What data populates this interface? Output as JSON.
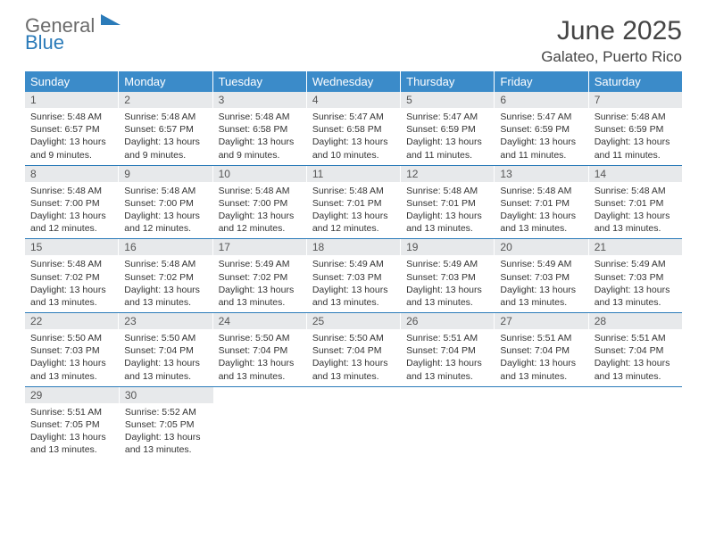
{
  "logo": {
    "top": "General",
    "bottom": "Blue"
  },
  "title": {
    "month": "June 2025",
    "location": "Galateo, Puerto Rico"
  },
  "colors": {
    "header_bg": "#3b8bc9",
    "header_text": "#ffffff",
    "daynum_bg": "#e7e9eb",
    "daynum_text": "#555555",
    "body_text": "#333333",
    "rule": "#2b7bb9",
    "logo_gray": "#6b6b6b",
    "logo_blue": "#2b7bb9"
  },
  "fonts": {
    "title_size": 30,
    "location_size": 17,
    "weekday_size": 13,
    "daynum_size": 12,
    "body_size": 10.5
  },
  "weekdays": [
    "Sunday",
    "Monday",
    "Tuesday",
    "Wednesday",
    "Thursday",
    "Friday",
    "Saturday"
  ],
  "days": [
    {
      "n": "1",
      "sr": "5:48 AM",
      "ss": "6:57 PM",
      "dl": "13 hours and 9 minutes."
    },
    {
      "n": "2",
      "sr": "5:48 AM",
      "ss": "6:57 PM",
      "dl": "13 hours and 9 minutes."
    },
    {
      "n": "3",
      "sr": "5:48 AM",
      "ss": "6:58 PM",
      "dl": "13 hours and 9 minutes."
    },
    {
      "n": "4",
      "sr": "5:47 AM",
      "ss": "6:58 PM",
      "dl": "13 hours and 10 minutes."
    },
    {
      "n": "5",
      "sr": "5:47 AM",
      "ss": "6:59 PM",
      "dl": "13 hours and 11 minutes."
    },
    {
      "n": "6",
      "sr": "5:47 AM",
      "ss": "6:59 PM",
      "dl": "13 hours and 11 minutes."
    },
    {
      "n": "7",
      "sr": "5:48 AM",
      "ss": "6:59 PM",
      "dl": "13 hours and 11 minutes."
    },
    {
      "n": "8",
      "sr": "5:48 AM",
      "ss": "7:00 PM",
      "dl": "13 hours and 12 minutes."
    },
    {
      "n": "9",
      "sr": "5:48 AM",
      "ss": "7:00 PM",
      "dl": "13 hours and 12 minutes."
    },
    {
      "n": "10",
      "sr": "5:48 AM",
      "ss": "7:00 PM",
      "dl": "13 hours and 12 minutes."
    },
    {
      "n": "11",
      "sr": "5:48 AM",
      "ss": "7:01 PM",
      "dl": "13 hours and 12 minutes."
    },
    {
      "n": "12",
      "sr": "5:48 AM",
      "ss": "7:01 PM",
      "dl": "13 hours and 13 minutes."
    },
    {
      "n": "13",
      "sr": "5:48 AM",
      "ss": "7:01 PM",
      "dl": "13 hours and 13 minutes."
    },
    {
      "n": "14",
      "sr": "5:48 AM",
      "ss": "7:01 PM",
      "dl": "13 hours and 13 minutes."
    },
    {
      "n": "15",
      "sr": "5:48 AM",
      "ss": "7:02 PM",
      "dl": "13 hours and 13 minutes."
    },
    {
      "n": "16",
      "sr": "5:48 AM",
      "ss": "7:02 PM",
      "dl": "13 hours and 13 minutes."
    },
    {
      "n": "17",
      "sr": "5:49 AM",
      "ss": "7:02 PM",
      "dl": "13 hours and 13 minutes."
    },
    {
      "n": "18",
      "sr": "5:49 AM",
      "ss": "7:03 PM",
      "dl": "13 hours and 13 minutes."
    },
    {
      "n": "19",
      "sr": "5:49 AM",
      "ss": "7:03 PM",
      "dl": "13 hours and 13 minutes."
    },
    {
      "n": "20",
      "sr": "5:49 AM",
      "ss": "7:03 PM",
      "dl": "13 hours and 13 minutes."
    },
    {
      "n": "21",
      "sr": "5:49 AM",
      "ss": "7:03 PM",
      "dl": "13 hours and 13 minutes."
    },
    {
      "n": "22",
      "sr": "5:50 AM",
      "ss": "7:03 PM",
      "dl": "13 hours and 13 minutes."
    },
    {
      "n": "23",
      "sr": "5:50 AM",
      "ss": "7:04 PM",
      "dl": "13 hours and 13 minutes."
    },
    {
      "n": "24",
      "sr": "5:50 AM",
      "ss": "7:04 PM",
      "dl": "13 hours and 13 minutes."
    },
    {
      "n": "25",
      "sr": "5:50 AM",
      "ss": "7:04 PM",
      "dl": "13 hours and 13 minutes."
    },
    {
      "n": "26",
      "sr": "5:51 AM",
      "ss": "7:04 PM",
      "dl": "13 hours and 13 minutes."
    },
    {
      "n": "27",
      "sr": "5:51 AM",
      "ss": "7:04 PM",
      "dl": "13 hours and 13 minutes."
    },
    {
      "n": "28",
      "sr": "5:51 AM",
      "ss": "7:04 PM",
      "dl": "13 hours and 13 minutes."
    },
    {
      "n": "29",
      "sr": "5:51 AM",
      "ss": "7:05 PM",
      "dl": "13 hours and 13 minutes."
    },
    {
      "n": "30",
      "sr": "5:52 AM",
      "ss": "7:05 PM",
      "dl": "13 hours and 13 minutes."
    }
  ],
  "labels": {
    "sunrise": "Sunrise:",
    "sunset": "Sunset:",
    "daylight": "Daylight:"
  }
}
